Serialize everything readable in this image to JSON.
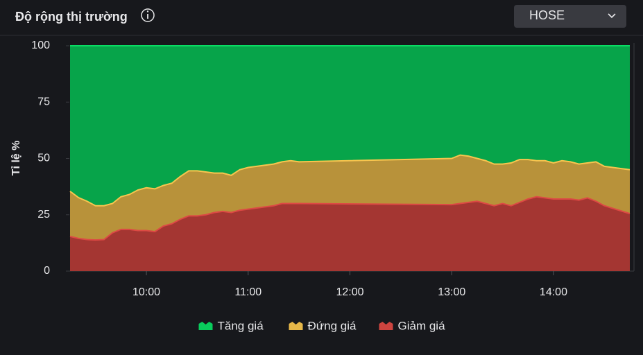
{
  "selector": "HOSE",
  "chart_data": {
    "type": "stacked_area",
    "title": "Độ rộng thị trường",
    "ylabel": "Tỉ lệ %",
    "x": [
      555,
      560,
      565,
      570,
      575,
      580,
      585,
      590,
      595,
      600,
      605,
      610,
      615,
      620,
      625,
      630,
      635,
      640,
      645,
      650,
      655,
      660,
      665,
      670,
      675,
      680,
      685,
      690,
      780,
      785,
      790,
      795,
      800,
      805,
      810,
      815,
      820,
      825,
      830,
      835,
      840,
      845,
      850,
      855,
      860,
      865,
      870,
      885
    ],
    "xlim": [
      555,
      885
    ],
    "xticks": [
      {
        "value": 600,
        "label": "10:00"
      },
      {
        "value": 660,
        "label": "11:00"
      },
      {
        "value": 720,
        "label": "12:00"
      },
      {
        "value": 780,
        "label": "13:00"
      },
      {
        "value": 840,
        "label": "14:00"
      }
    ],
    "ylim": [
      0,
      100
    ],
    "yticks": [
      0,
      25,
      50,
      75,
      100
    ],
    "series": [
      {
        "name": "Tăng giá",
        "color": "#07a44a",
        "values": [
          64.6,
          67.4,
          69,
          71,
          71,
          70,
          67,
          66,
          64,
          63,
          63.5,
          62,
          61,
          58,
          55.5,
          55.5,
          56,
          56.5,
          56.5,
          57.5,
          55,
          54,
          53.5,
          53,
          52.5,
          51.5,
          51,
          51.5,
          50,
          48.5,
          49,
          50,
          51,
          52.5,
          52.5,
          52,
          50.5,
          50.5,
          51,
          51,
          52,
          51,
          51.5,
          52.5,
          52,
          51.5,
          53.5,
          55
        ]
      },
      {
        "name": "Đứng giá",
        "color": "#b8923a",
        "values": [
          20,
          18.1,
          17,
          15.2,
          15,
          13,
          14.5,
          15.5,
          18,
          19,
          19,
          18,
          18,
          19,
          20,
          20,
          19,
          17.5,
          17,
          16.5,
          18,
          18.5,
          18.5,
          18.5,
          18.5,
          18.5,
          19,
          18.5,
          20.5,
          21.5,
          20.5,
          19,
          19,
          18.5,
          17.5,
          19,
          19,
          17.5,
          16,
          16.5,
          16,
          17,
          16.5,
          16,
          15.5,
          17.5,
          17.5,
          19.5
        ]
      },
      {
        "name": "Giảm giá",
        "color": "#a43632",
        "values": [
          15.4,
          14.5,
          14,
          13.8,
          14,
          17,
          18.5,
          18.5,
          18,
          18,
          17.5,
          20,
          21,
          23,
          24.5,
          24.5,
          25,
          26,
          26.5,
          26,
          27,
          27.5,
          28,
          28.5,
          29,
          30,
          30,
          30,
          29.5,
          30,
          30.5,
          31,
          30,
          29,
          30,
          29,
          30.5,
          32,
          33,
          32.5,
          32,
          32,
          32,
          31.5,
          32.5,
          31,
          29,
          25.5
        ]
      }
    ]
  }
}
